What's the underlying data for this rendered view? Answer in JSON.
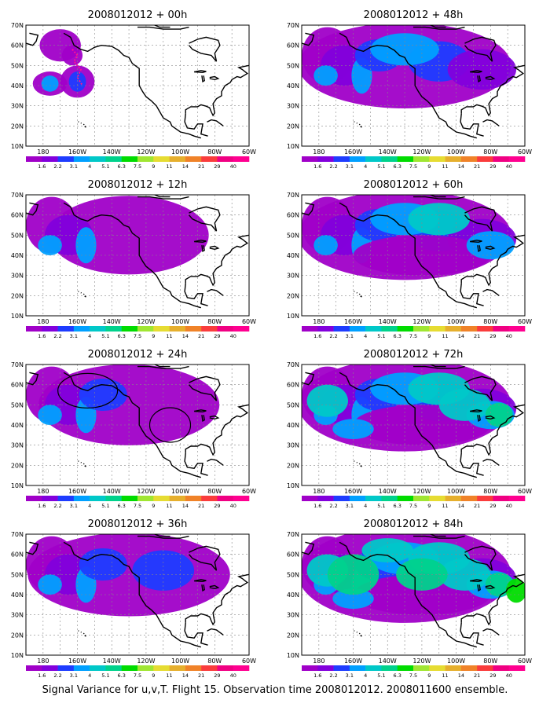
{
  "caption": "Signal Variance for u,v,T. Flight 15. Observation time 2008012012. 2008011600 ensemble.",
  "lat_labels": [
    "10N",
    "20N",
    "30N",
    "40N",
    "50N",
    "60N",
    "70N"
  ],
  "lon_labels": [
    "180",
    "160W",
    "140W",
    "120W",
    "100W",
    "80W",
    "60W"
  ],
  "colorbar": {
    "levels": [
      "1.6",
      "2.2",
      "3.1",
      "4",
      "5.1",
      "6.3",
      "7.5",
      "9",
      "11",
      "14",
      "21",
      "29",
      "40"
    ],
    "colors": [
      "#a000c8",
      "#8200dc",
      "#1e3cff",
      "#00a0ff",
      "#00c8c8",
      "#00d28c",
      "#00dc00",
      "#a0e632",
      "#e6dc32",
      "#e6af2d",
      "#f08228",
      "#fa3c3c",
      "#f00082",
      "#ff0090"
    ]
  },
  "panels": [
    {
      "title": "2008012012 + 00h",
      "lead": "00h",
      "intensity": 0.05
    },
    {
      "title": "2008012012 + 48h",
      "lead": "48h",
      "intensity": 0.55
    },
    {
      "title": "2008012012 + 12h",
      "lead": "12h",
      "intensity": 0.25
    },
    {
      "title": "2008012012 + 60h",
      "lead": "60h",
      "intensity": 0.7
    },
    {
      "title": "2008012012 + 24h",
      "lead": "24h",
      "intensity": 0.35
    },
    {
      "title": "2008012012 + 72h",
      "lead": "72h",
      "intensity": 0.85
    },
    {
      "title": "2008012012 + 36h",
      "lead": "36h",
      "intensity": 0.45
    },
    {
      "title": "2008012012 + 84h",
      "lead": "84h",
      "intensity": 1.0
    }
  ]
}
